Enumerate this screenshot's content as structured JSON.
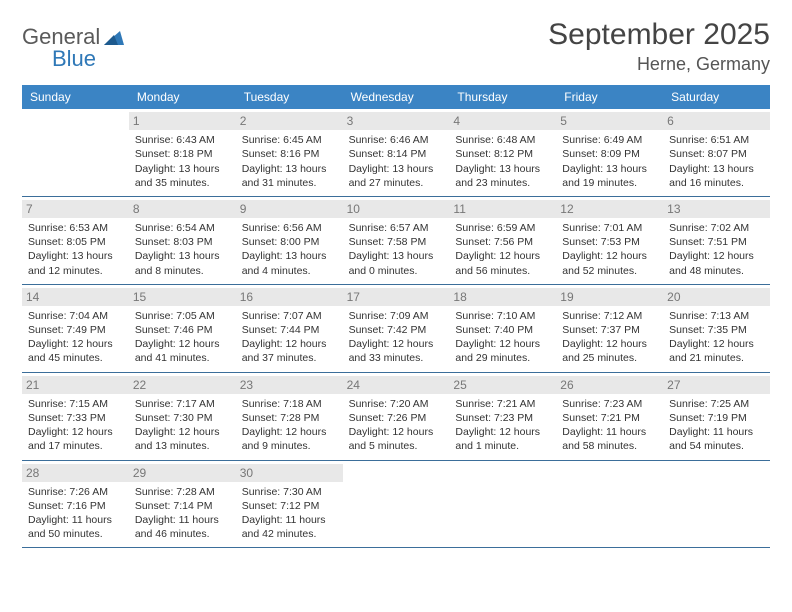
{
  "brand": {
    "part1": "General",
    "part2": "Blue"
  },
  "title": "September 2025",
  "location": "Herne, Germany",
  "colors": {
    "header_bg": "#3b84c4",
    "header_fg": "#ffffff",
    "divider": "#3b6e9a",
    "daynum_bg": "#e8e8e8",
    "daynum_fg": "#777777",
    "brand_blue": "#2f78b7",
    "text": "#333333",
    "bg": "#ffffff"
  },
  "day_names": [
    "Sunday",
    "Monday",
    "Tuesday",
    "Wednesday",
    "Thursday",
    "Friday",
    "Saturday"
  ],
  "weeks": [
    [
      null,
      {
        "n": "1",
        "sr": "Sunrise: 6:43 AM",
        "ss": "Sunset: 8:18 PM",
        "d1": "Daylight: 13 hours",
        "d2": "and 35 minutes."
      },
      {
        "n": "2",
        "sr": "Sunrise: 6:45 AM",
        "ss": "Sunset: 8:16 PM",
        "d1": "Daylight: 13 hours",
        "d2": "and 31 minutes."
      },
      {
        "n": "3",
        "sr": "Sunrise: 6:46 AM",
        "ss": "Sunset: 8:14 PM",
        "d1": "Daylight: 13 hours",
        "d2": "and 27 minutes."
      },
      {
        "n": "4",
        "sr": "Sunrise: 6:48 AM",
        "ss": "Sunset: 8:12 PM",
        "d1": "Daylight: 13 hours",
        "d2": "and 23 minutes."
      },
      {
        "n": "5",
        "sr": "Sunrise: 6:49 AM",
        "ss": "Sunset: 8:09 PM",
        "d1": "Daylight: 13 hours",
        "d2": "and 19 minutes."
      },
      {
        "n": "6",
        "sr": "Sunrise: 6:51 AM",
        "ss": "Sunset: 8:07 PM",
        "d1": "Daylight: 13 hours",
        "d2": "and 16 minutes."
      }
    ],
    [
      {
        "n": "7",
        "sr": "Sunrise: 6:53 AM",
        "ss": "Sunset: 8:05 PM",
        "d1": "Daylight: 13 hours",
        "d2": "and 12 minutes."
      },
      {
        "n": "8",
        "sr": "Sunrise: 6:54 AM",
        "ss": "Sunset: 8:03 PM",
        "d1": "Daylight: 13 hours",
        "d2": "and 8 minutes."
      },
      {
        "n": "9",
        "sr": "Sunrise: 6:56 AM",
        "ss": "Sunset: 8:00 PM",
        "d1": "Daylight: 13 hours",
        "d2": "and 4 minutes."
      },
      {
        "n": "10",
        "sr": "Sunrise: 6:57 AM",
        "ss": "Sunset: 7:58 PM",
        "d1": "Daylight: 13 hours",
        "d2": "and 0 minutes."
      },
      {
        "n": "11",
        "sr": "Sunrise: 6:59 AM",
        "ss": "Sunset: 7:56 PM",
        "d1": "Daylight: 12 hours",
        "d2": "and 56 minutes."
      },
      {
        "n": "12",
        "sr": "Sunrise: 7:01 AM",
        "ss": "Sunset: 7:53 PM",
        "d1": "Daylight: 12 hours",
        "d2": "and 52 minutes."
      },
      {
        "n": "13",
        "sr": "Sunrise: 7:02 AM",
        "ss": "Sunset: 7:51 PM",
        "d1": "Daylight: 12 hours",
        "d2": "and 48 minutes."
      }
    ],
    [
      {
        "n": "14",
        "sr": "Sunrise: 7:04 AM",
        "ss": "Sunset: 7:49 PM",
        "d1": "Daylight: 12 hours",
        "d2": "and 45 minutes."
      },
      {
        "n": "15",
        "sr": "Sunrise: 7:05 AM",
        "ss": "Sunset: 7:46 PM",
        "d1": "Daylight: 12 hours",
        "d2": "and 41 minutes."
      },
      {
        "n": "16",
        "sr": "Sunrise: 7:07 AM",
        "ss": "Sunset: 7:44 PM",
        "d1": "Daylight: 12 hours",
        "d2": "and 37 minutes."
      },
      {
        "n": "17",
        "sr": "Sunrise: 7:09 AM",
        "ss": "Sunset: 7:42 PM",
        "d1": "Daylight: 12 hours",
        "d2": "and 33 minutes."
      },
      {
        "n": "18",
        "sr": "Sunrise: 7:10 AM",
        "ss": "Sunset: 7:40 PM",
        "d1": "Daylight: 12 hours",
        "d2": "and 29 minutes."
      },
      {
        "n": "19",
        "sr": "Sunrise: 7:12 AM",
        "ss": "Sunset: 7:37 PM",
        "d1": "Daylight: 12 hours",
        "d2": "and 25 minutes."
      },
      {
        "n": "20",
        "sr": "Sunrise: 7:13 AM",
        "ss": "Sunset: 7:35 PM",
        "d1": "Daylight: 12 hours",
        "d2": "and 21 minutes."
      }
    ],
    [
      {
        "n": "21",
        "sr": "Sunrise: 7:15 AM",
        "ss": "Sunset: 7:33 PM",
        "d1": "Daylight: 12 hours",
        "d2": "and 17 minutes."
      },
      {
        "n": "22",
        "sr": "Sunrise: 7:17 AM",
        "ss": "Sunset: 7:30 PM",
        "d1": "Daylight: 12 hours",
        "d2": "and 13 minutes."
      },
      {
        "n": "23",
        "sr": "Sunrise: 7:18 AM",
        "ss": "Sunset: 7:28 PM",
        "d1": "Daylight: 12 hours",
        "d2": "and 9 minutes."
      },
      {
        "n": "24",
        "sr": "Sunrise: 7:20 AM",
        "ss": "Sunset: 7:26 PM",
        "d1": "Daylight: 12 hours",
        "d2": "and 5 minutes."
      },
      {
        "n": "25",
        "sr": "Sunrise: 7:21 AM",
        "ss": "Sunset: 7:23 PM",
        "d1": "Daylight: 12 hours",
        "d2": "and 1 minute."
      },
      {
        "n": "26",
        "sr": "Sunrise: 7:23 AM",
        "ss": "Sunset: 7:21 PM",
        "d1": "Daylight: 11 hours",
        "d2": "and 58 minutes."
      },
      {
        "n": "27",
        "sr": "Sunrise: 7:25 AM",
        "ss": "Sunset: 7:19 PM",
        "d1": "Daylight: 11 hours",
        "d2": "and 54 minutes."
      }
    ],
    [
      {
        "n": "28",
        "sr": "Sunrise: 7:26 AM",
        "ss": "Sunset: 7:16 PM",
        "d1": "Daylight: 11 hours",
        "d2": "and 50 minutes."
      },
      {
        "n": "29",
        "sr": "Sunrise: 7:28 AM",
        "ss": "Sunset: 7:14 PM",
        "d1": "Daylight: 11 hours",
        "d2": "and 46 minutes."
      },
      {
        "n": "30",
        "sr": "Sunrise: 7:30 AM",
        "ss": "Sunset: 7:12 PM",
        "d1": "Daylight: 11 hours",
        "d2": "and 42 minutes."
      },
      null,
      null,
      null,
      null
    ]
  ]
}
